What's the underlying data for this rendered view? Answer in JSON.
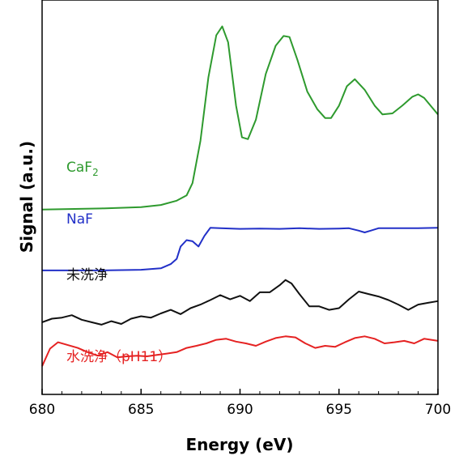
{
  "chart_data": {
    "type": "line",
    "xlabel": "Energy (eV)",
    "ylabel": "Signal (a.u.)",
    "xlim": [
      680,
      700
    ],
    "x_ticks": [
      "680",
      "685",
      "690",
      "695",
      "700"
    ],
    "y_ticks_labeled": false,
    "grid": false,
    "legend": "inline labels next to each curve",
    "series": [
      {
        "name": "CaF2",
        "label_main": "CaF",
        "label_sub": "2",
        "color": "#2e9a2e",
        "x": [
          680,
          683,
          685,
          686,
          686.8,
          687.3,
          687.6,
          688,
          688.4,
          688.8,
          689.1,
          689.4,
          689.8,
          690.1,
          690.4,
          690.8,
          691.3,
          691.8,
          692.2,
          692.5,
          692.9,
          693.4,
          693.9,
          694.3,
          694.6,
          695.0,
          695.4,
          695.8,
          696.3,
          696.8,
          697.2,
          697.7,
          698.2,
          698.7,
          699.0,
          699.3,
          699.7,
          700
        ],
        "y": [
          0.405,
          0.408,
          0.412,
          0.418,
          0.43,
          0.445,
          0.48,
          0.6,
          0.78,
          0.9,
          0.925,
          0.88,
          0.7,
          0.61,
          0.605,
          0.66,
          0.79,
          0.87,
          0.898,
          0.895,
          0.83,
          0.74,
          0.69,
          0.665,
          0.665,
          0.7,
          0.755,
          0.775,
          0.745,
          0.7,
          0.675,
          0.678,
          0.7,
          0.725,
          0.732,
          0.722,
          0.695,
          0.675
        ]
      },
      {
        "name": "NaF",
        "color": "#2230c8",
        "x": [
          680,
          683,
          685,
          686,
          686.5,
          686.8,
          687.0,
          687.3,
          687.6,
          687.9,
          688.2,
          688.5,
          689,
          690,
          691,
          692,
          693,
          694,
          695,
          695.5,
          696,
          696.3,
          696.6,
          697,
          698,
          699,
          700
        ],
        "y": [
          0.232,
          0.232,
          0.234,
          0.238,
          0.25,
          0.265,
          0.3,
          0.318,
          0.315,
          0.3,
          0.33,
          0.353,
          0.352,
          0.35,
          0.351,
          0.35,
          0.352,
          0.35,
          0.351,
          0.352,
          0.345,
          0.34,
          0.345,
          0.352,
          0.352,
          0.352,
          0.353
        ]
      },
      {
        "name": "未洗浄",
        "color": "#111111",
        "x": [
          680,
          680.5,
          681,
          681.5,
          682,
          682.5,
          683,
          683.5,
          684,
          684.5,
          685,
          685.5,
          686,
          686.5,
          687,
          687.5,
          688,
          688.5,
          689,
          689.5,
          690,
          690.5,
          691,
          691.5,
          692,
          692.3,
          692.6,
          693,
          693.5,
          694,
          694.5,
          695,
          695.5,
          696,
          696.5,
          697,
          697.5,
          698,
          698.5,
          699,
          699.5,
          700
        ],
        "y": [
          0.085,
          0.095,
          0.098,
          0.105,
          0.092,
          0.085,
          0.078,
          0.088,
          0.08,
          0.095,
          0.102,
          0.098,
          0.11,
          0.12,
          0.108,
          0.125,
          0.135,
          0.148,
          0.162,
          0.15,
          0.16,
          0.145,
          0.17,
          0.17,
          0.19,
          0.205,
          0.195,
          0.165,
          0.13,
          0.13,
          0.12,
          0.125,
          0.15,
          0.172,
          0.165,
          0.158,
          0.148,
          0.135,
          0.12,
          0.135,
          0.14,
          0.145
        ]
      },
      {
        "name": "水洗浄（pH11）",
        "color": "#e52222",
        "x": [
          680,
          680.4,
          680.8,
          681.3,
          681.8,
          682.3,
          682.8,
          683.3,
          683.8,
          684.3,
          684.8,
          685.3,
          685.8,
          686.3,
          686.8,
          687.3,
          687.8,
          688.3,
          688.8,
          689.3,
          689.8,
          690.3,
          690.8,
          691.3,
          691.8,
          692.3,
          692.8,
          693.3,
          693.8,
          694.3,
          694.8,
          695.3,
          695.8,
          696.3,
          696.8,
          697.3,
          697.8,
          698.3,
          698.8,
          699.3,
          700
        ],
        "y": [
          -0.04,
          0.01,
          0.028,
          0.02,
          0.012,
          0.0,
          -0.01,
          0.0,
          -0.015,
          -0.012,
          -0.01,
          -0.012,
          -0.008,
          -0.004,
          0.0,
          0.012,
          0.018,
          0.025,
          0.035,
          0.038,
          0.03,
          0.025,
          0.018,
          0.03,
          0.04,
          0.045,
          0.042,
          0.025,
          0.012,
          0.018,
          0.015,
          0.028,
          0.04,
          0.045,
          0.038,
          0.025,
          0.028,
          0.032,
          0.025,
          0.038,
          0.032
        ]
      }
    ]
  }
}
